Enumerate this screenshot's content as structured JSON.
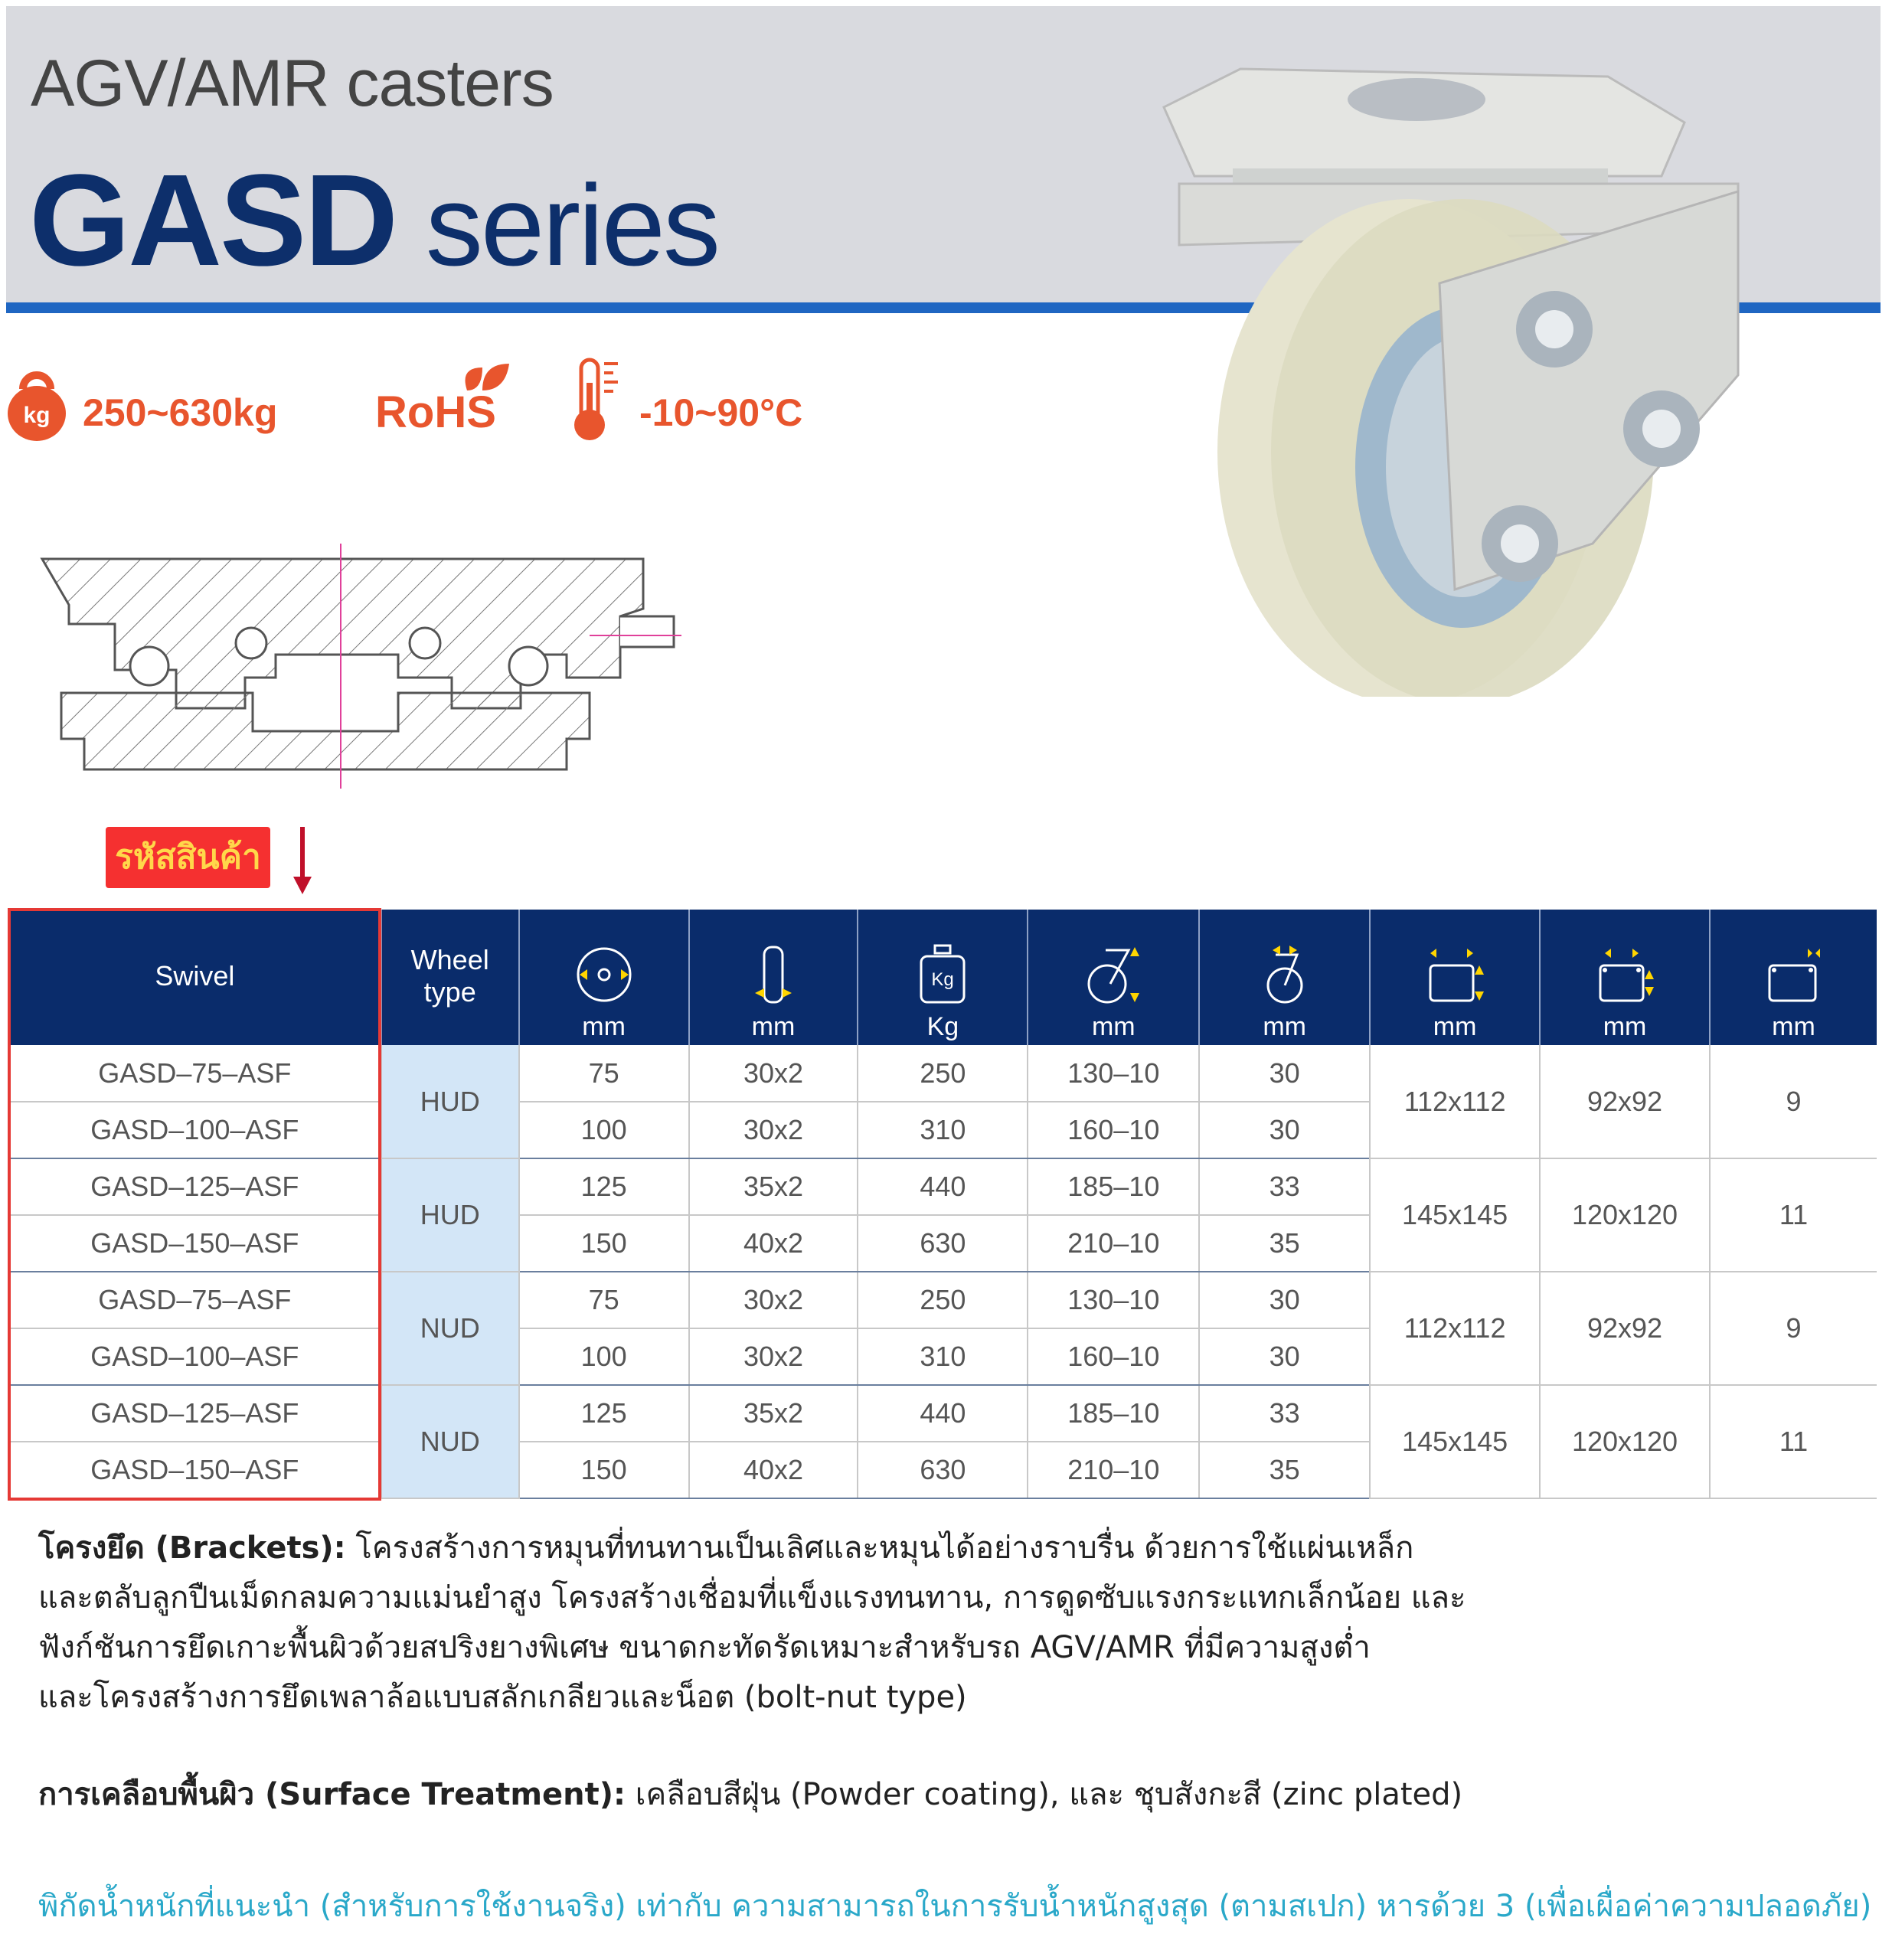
{
  "header": {
    "subtitle": "AGV/AMR casters",
    "title_bold": "GASD",
    "title_rest": " series"
  },
  "features": {
    "load": "250~630kg",
    "load_icon_text": "kg",
    "rohs": "RoHS",
    "temp": "-10~90°C"
  },
  "colors": {
    "brand_navy": "#0a2c6b",
    "accent_orange": "#e8552d",
    "stripe_blue": "#1f66c2",
    "wheel_type_bg": "#d3e6f7",
    "note_cyan": "#2aa8c9"
  },
  "product_code_label": "รหัสสินค้า",
  "table": {
    "headers": [
      {
        "label": "Swivel"
      },
      {
        "label": "Wheel type"
      },
      {
        "icon": "wheel-diameter-icon",
        "unit": "mm"
      },
      {
        "icon": "wheel-width-icon",
        "unit": "mm"
      },
      {
        "icon": "load-weight-icon",
        "icon_text": "Kg",
        "unit": "Kg"
      },
      {
        "icon": "overall-height-icon",
        "unit": "mm"
      },
      {
        "icon": "swivel-offset-icon",
        "unit": "mm"
      },
      {
        "icon": "plate-size-icon",
        "unit": "mm"
      },
      {
        "icon": "bolt-hole-spacing-icon",
        "unit": "mm"
      },
      {
        "icon": "bolt-hole-diameter-icon",
        "unit": "mm"
      }
    ],
    "groups": [
      {
        "wheel_type": "HUD",
        "plate": "112x112",
        "holes": "92x92",
        "bolt": "9",
        "rows": [
          [
            "GASD–75–ASF",
            "75",
            "30x2",
            "250",
            "130–10",
            "30"
          ],
          [
            "GASD–100–ASF",
            "100",
            "30x2",
            "310",
            "160–10",
            "30"
          ]
        ]
      },
      {
        "wheel_type": "HUD",
        "plate": "145x145",
        "holes": "120x120",
        "bolt": "11",
        "rows": [
          [
            "GASD–125–ASF",
            "125",
            "35x2",
            "440",
            "185–10",
            "33"
          ],
          [
            "GASD–150–ASF",
            "150",
            "40x2",
            "630",
            "210–10",
            "35"
          ]
        ]
      },
      {
        "wheel_type": "NUD",
        "plate": "112x112",
        "holes": "92x92",
        "bolt": "9",
        "rows": [
          [
            "GASD–75–ASF",
            "75",
            "30x2",
            "250",
            "130–10",
            "30"
          ],
          [
            "GASD–100–ASF",
            "100",
            "30x2",
            "310",
            "160–10",
            "30"
          ]
        ]
      },
      {
        "wheel_type": "NUD",
        "plate": "145x145",
        "holes": "120x120",
        "bolt": "11",
        "rows": [
          [
            "GASD–125–ASF",
            "125",
            "35x2",
            "440",
            "185–10",
            "33"
          ],
          [
            "GASD–150–ASF",
            "150",
            "40x2",
            "630",
            "210–10",
            "35"
          ]
        ]
      }
    ]
  },
  "description": {
    "brackets_label": "โครงยึด (Brackets):",
    "brackets_lines": [
      " โครงสร้างการหมุนที่ทนทานเป็นเลิศและหมุนได้อย่างราบรื่น ด้วยการใช้แผ่นเหล็ก",
      "และตลับลูกปืนเม็ดกลมความแม่นยำสูง โครงสร้างเชื่อมที่แข็งแรงทนทาน, การดูดซับแรงกระแทกเล็กน้อย และ",
      "ฟังก์ชันการยึดเกาะพื้นผิวด้วยสปริงยางพิเศษ ขนาดกะทัดรัดเหมาะสำหรับรถ AGV/AMR ที่มีความสูงต่ำ",
      "และโครงสร้างการยึดเพลาล้อแบบสลักเกลียวและน็อต (bolt-nut type)"
    ],
    "surface_label": "การเคลือบพื้นผิว (Surface Treatment):",
    "surface_text": " เคลือบสีฝุ่น (Powder coating), และ ชุบสังกะสี (zinc plated)",
    "note": "พิกัดน้ำหนักที่แนะนำ (สำหรับการใช้งานจริง) เท่ากับ ความสามารถในการรับน้ำหนักสูงสุด (ตามสเปก) หารด้วย 3 (เพื่อเผื่อค่าความปลอดภัย)"
  }
}
